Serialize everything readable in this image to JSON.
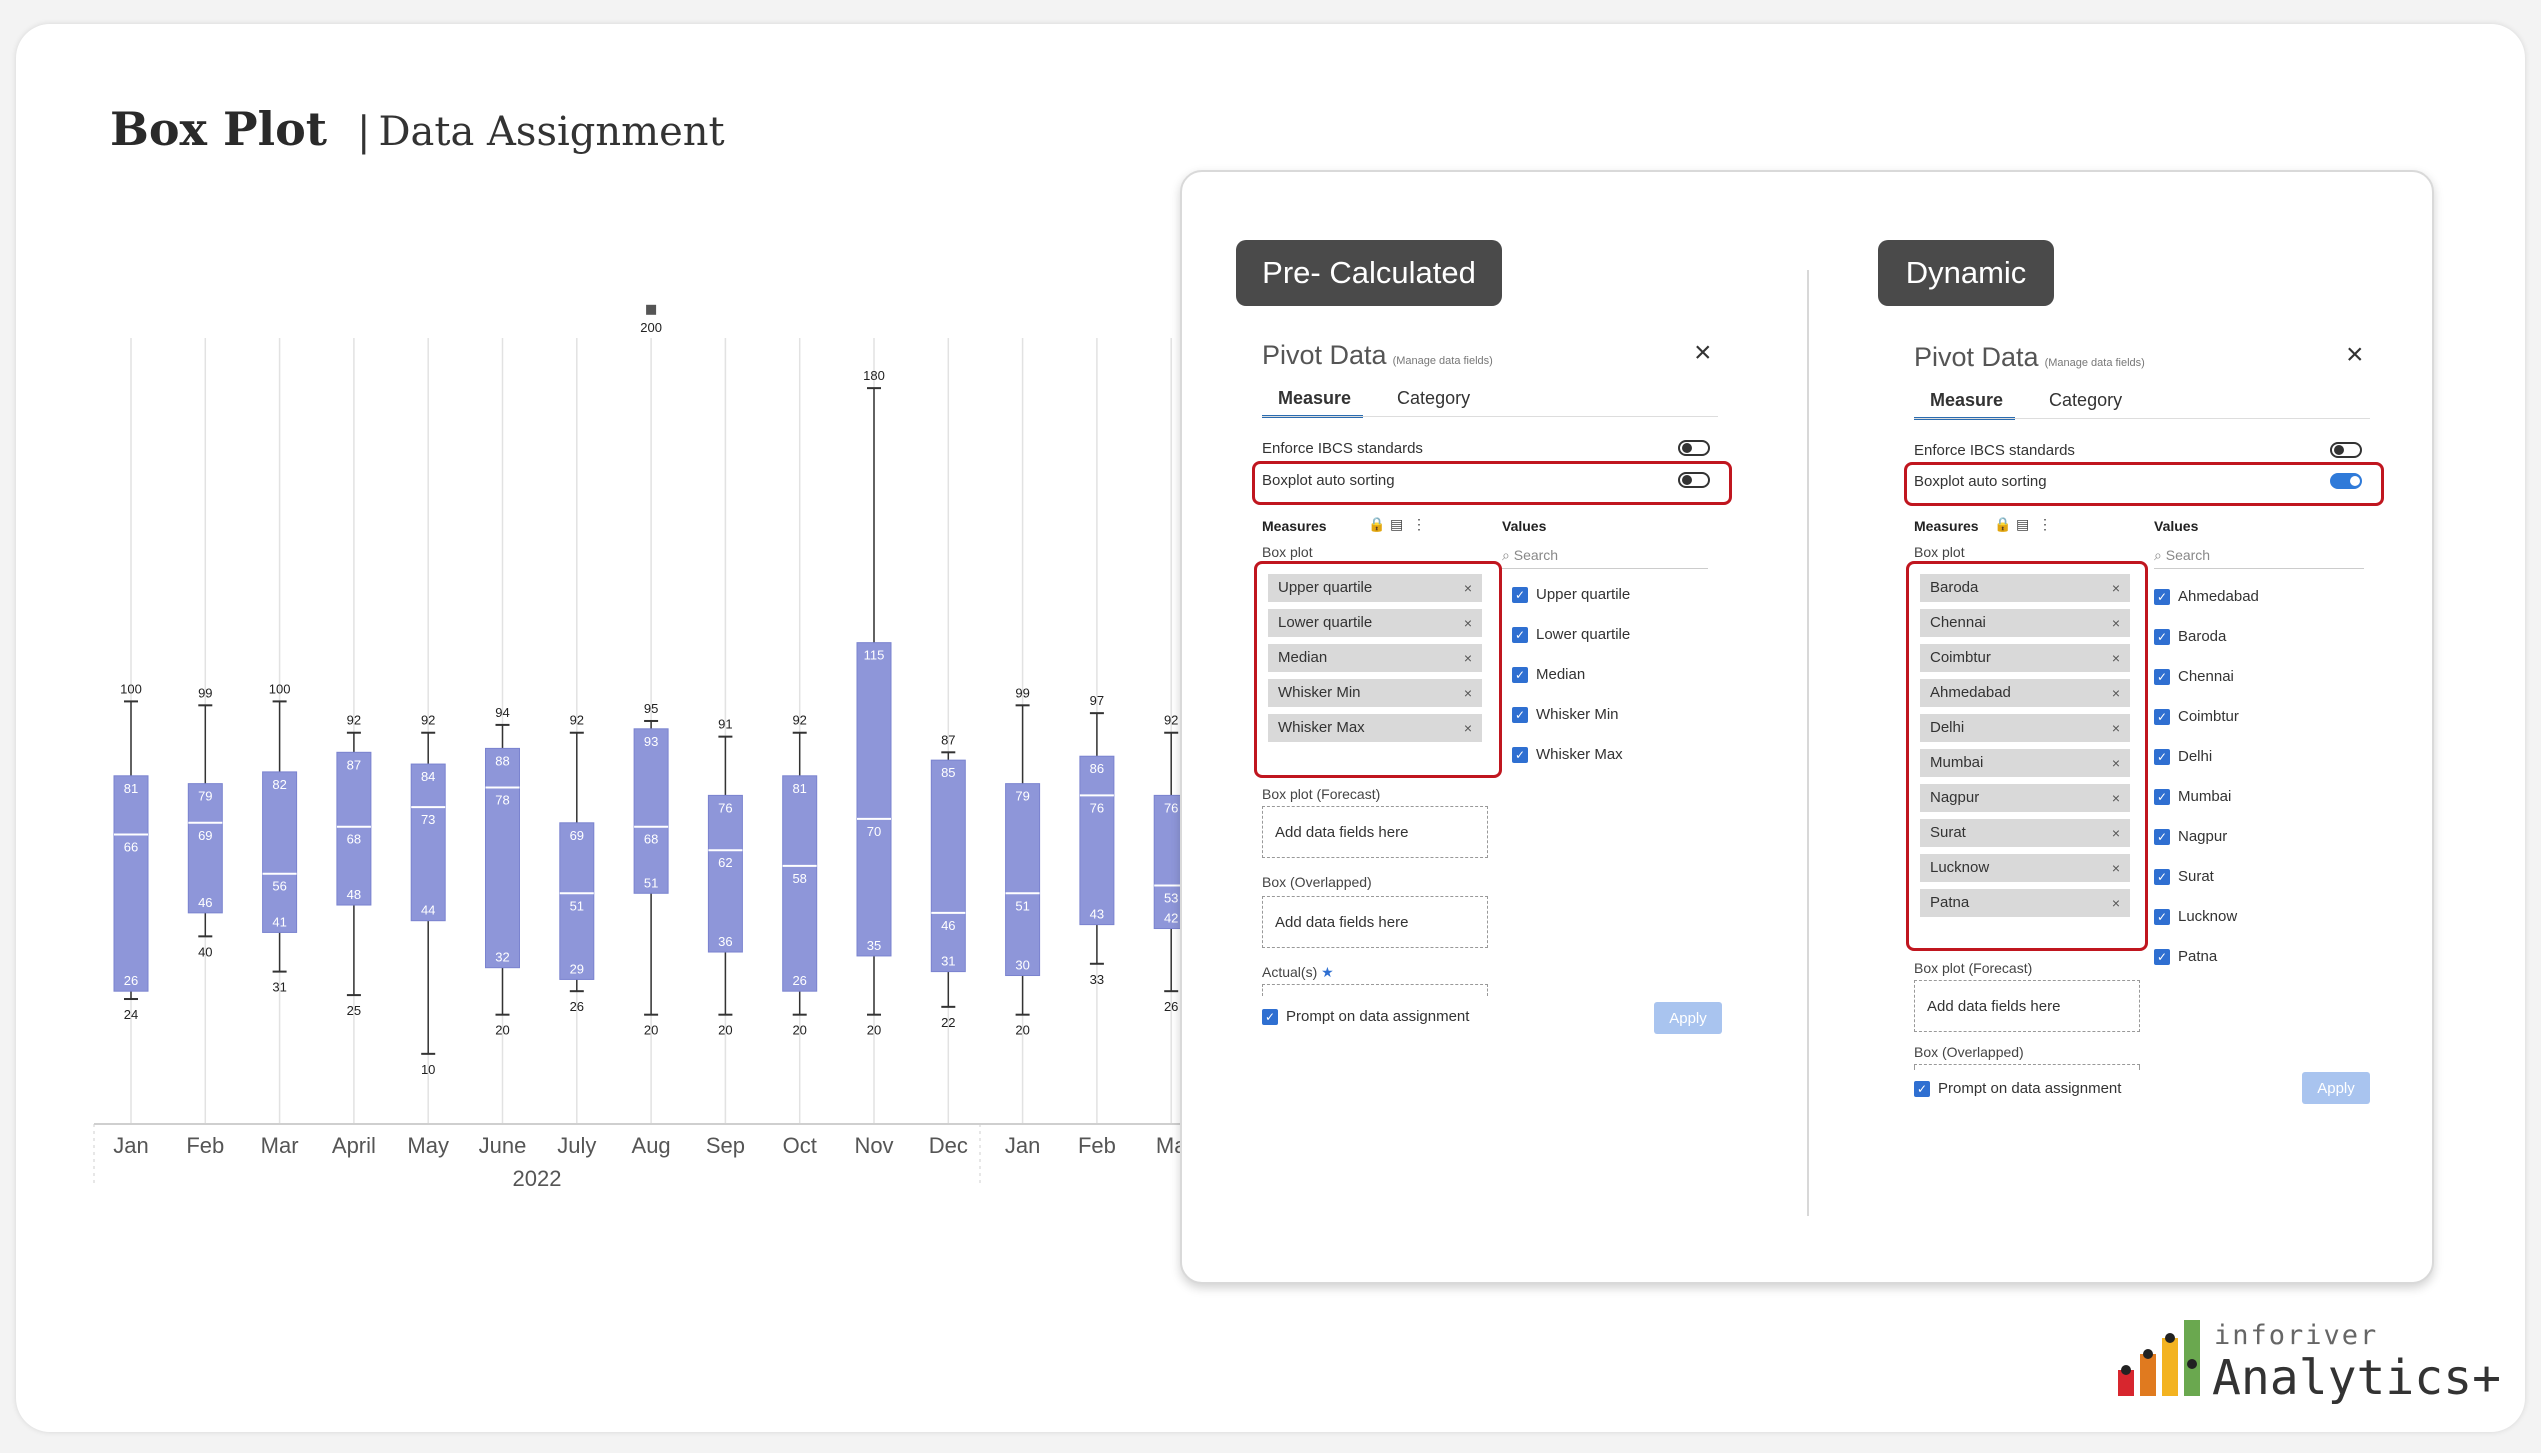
{
  "header": {
    "title": "Box Plot",
    "separator": "|",
    "subtitle": "Data Assignment"
  },
  "chart_data": {
    "type": "boxplot",
    "year_label": "2022",
    "categories": [
      "Jan",
      "Feb",
      "Mar",
      "April",
      "May",
      "June",
      "July",
      "Aug",
      "Sep",
      "Oct",
      "Nov",
      "Dec",
      "Jan",
      "Feb",
      "Ma"
    ],
    "boxes": [
      {
        "whisker_max": 100,
        "upper_quartile": 81,
        "median": 66,
        "lower_quartile": 26,
        "whisker_min": 24
      },
      {
        "whisker_max": 99,
        "upper_quartile": 79,
        "median": 69,
        "lower_quartile": 46,
        "whisker_min": 40
      },
      {
        "whisker_max": 100,
        "upper_quartile": 82,
        "median": 56,
        "lower_quartile": 41,
        "whisker_min": 31
      },
      {
        "whisker_max": 92,
        "upper_quartile": 87,
        "median": 68,
        "lower_quartile": 48,
        "whisker_min": 25
      },
      {
        "whisker_max": 92,
        "upper_quartile": 84,
        "median": 73,
        "lower_quartile": 44,
        "whisker_min": 10
      },
      {
        "whisker_max": 94,
        "upper_quartile": 88,
        "median": 78,
        "lower_quartile": 32,
        "whisker_min": 20
      },
      {
        "whisker_max": 92,
        "upper_quartile": 69,
        "median": 51,
        "lower_quartile": 29,
        "whisker_min": 26
      },
      {
        "whisker_max": 95,
        "upper_quartile": 93,
        "median": 68,
        "lower_quartile": 51,
        "whisker_min": 20,
        "outlier": 200
      },
      {
        "whisker_max": 91,
        "upper_quartile": 76,
        "median": 62,
        "lower_quartile": 36,
        "whisker_min": 20
      },
      {
        "whisker_max": 92,
        "upper_quartile": 81,
        "median": 58,
        "lower_quartile": 26,
        "whisker_min": 20
      },
      {
        "whisker_max": 180,
        "upper_quartile": 115,
        "median": 70,
        "lower_quartile": 35,
        "whisker_min": 20
      },
      {
        "whisker_max": 87,
        "upper_quartile": 85,
        "median": 46,
        "lower_quartile": 31,
        "whisker_min": 22
      },
      {
        "whisker_max": 99,
        "upper_quartile": 79,
        "median": 51,
        "lower_quartile": 30,
        "whisker_min": 20
      },
      {
        "whisker_max": 97,
        "upper_quartile": 86,
        "median": 76,
        "lower_quartile": 43,
        "whisker_min": 33
      },
      {
        "whisker_max": 92,
        "upper_quartile": 76,
        "median": 53,
        "lower_quartile": 42,
        "whisker_min": 26
      }
    ],
    "colors": {
      "box": "#8e96d9",
      "box_edge": "#7a83cf",
      "gridline": "#e2e2e2",
      "axis": "#cfcfcf"
    }
  },
  "panel": {
    "left": {
      "pill": "Pre- Calculated",
      "title": "Pivot Data",
      "title_note": "(Manage data fields)",
      "close": "×",
      "tabs": [
        "Measure",
        "Category"
      ],
      "enforce_label": "Enforce IBCS standards",
      "auto_sort_label": "Boxplot auto sorting",
      "auto_sort_on": false,
      "measures_label": "Measures",
      "values_label": "Values",
      "search_placeholder": "Search",
      "box_plot_label": "Box plot",
      "fields": [
        "Upper quartile",
        "Lower quartile",
        "Median",
        "Whisker Min",
        "Whisker Max"
      ],
      "values": [
        "Upper quartile",
        "Lower quartile",
        "Median",
        "Whisker Min",
        "Whisker Max"
      ],
      "forecast_label": "Box plot (Forecast)",
      "add_fields": "Add data fields here",
      "overlapped_label": "Box (Overlapped)",
      "actuals_label": "Actual(s)",
      "prompt_label": "Prompt on data assignment",
      "apply": "Apply"
    },
    "right": {
      "pill": "Dynamic",
      "title": "Pivot Data",
      "title_note": "(Manage data fields)",
      "close": "×",
      "tabs": [
        "Measure",
        "Category"
      ],
      "enforce_label": "Enforce IBCS standards",
      "auto_sort_label": "Boxplot auto sorting",
      "auto_sort_on": true,
      "measures_label": "Measures",
      "values_label": "Values",
      "search_placeholder": "Search",
      "box_plot_label": "Box plot",
      "fields": [
        "Baroda",
        "Chennai",
        "Coimbtur",
        "Ahmedabad",
        "Delhi",
        "Mumbai",
        "Nagpur",
        "Surat",
        "Lucknow",
        "Patna"
      ],
      "values": [
        "Ahmedabad",
        "Baroda",
        "Chennai",
        "Coimbtur",
        "Delhi",
        "Mumbai",
        "Nagpur",
        "Surat",
        "Lucknow",
        "Patna"
      ],
      "forecast_label": "Box plot (Forecast)",
      "add_fields": "Add data fields here",
      "overlapped_label": "Box (Overlapped)",
      "prompt_label": "Prompt on data assignment",
      "apply": "Apply"
    }
  },
  "logo": {
    "top": "inforiver",
    "main": "Analytics+"
  }
}
